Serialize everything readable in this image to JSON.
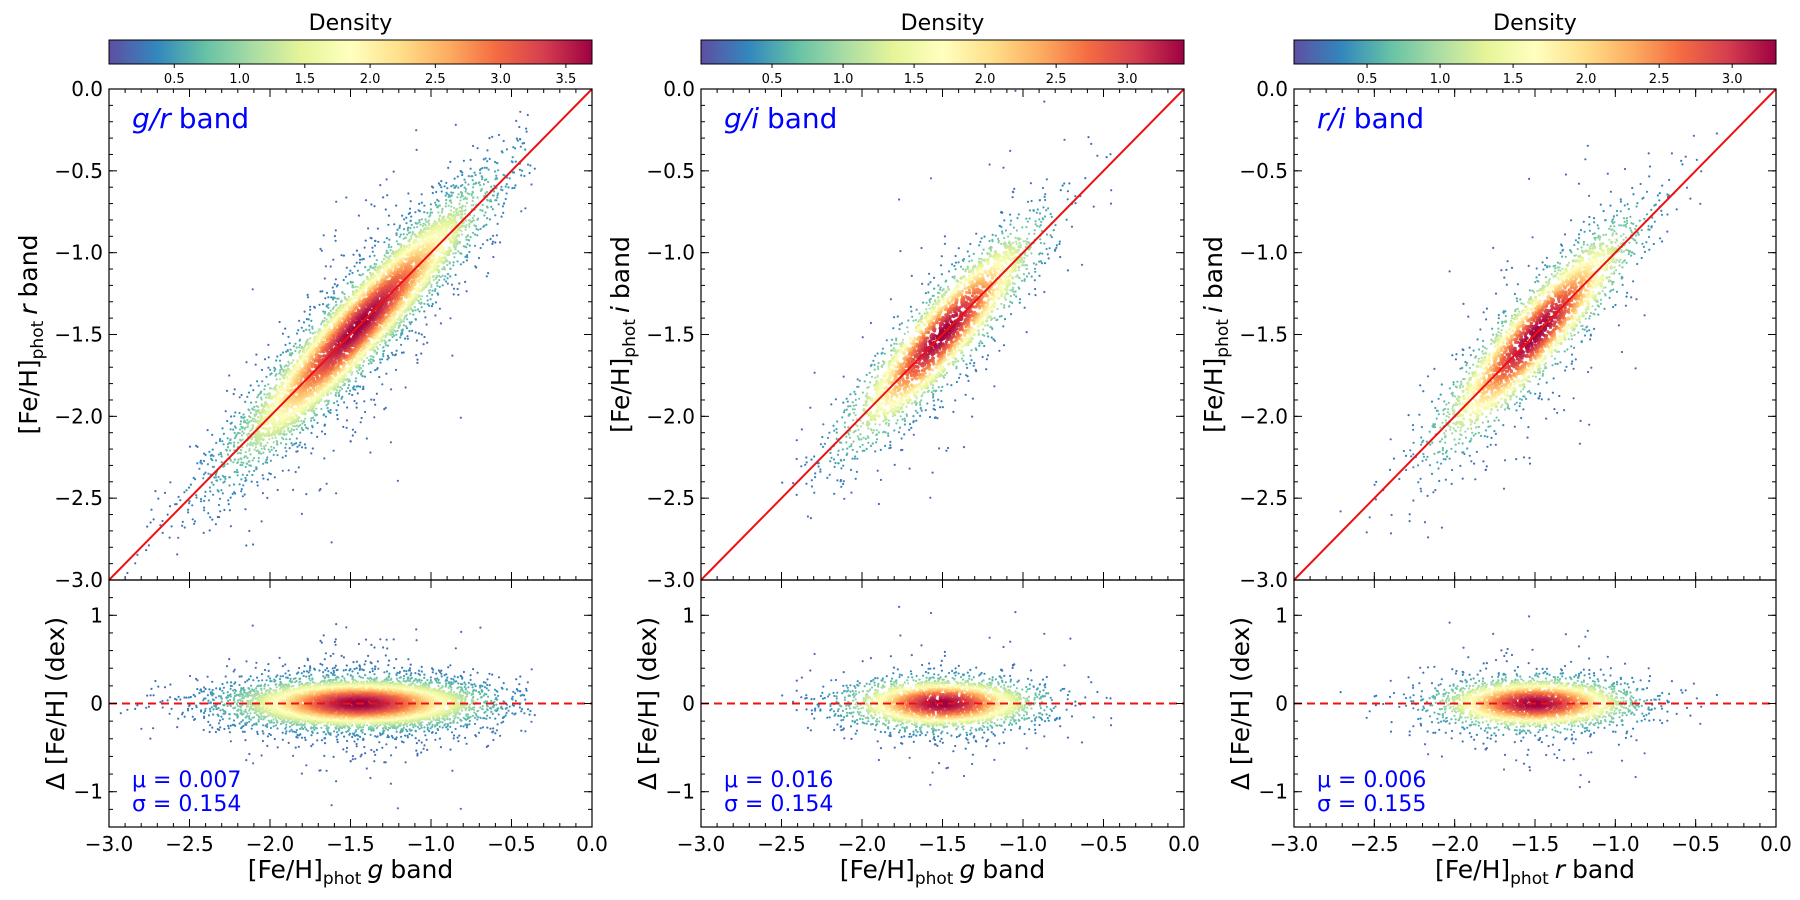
{
  "colors": {
    "diagonal": "#ee1111",
    "zero_line": "#ee1111",
    "annotation": "#0000ff",
    "colormap": [
      "#5e4fa2",
      "#3288bd",
      "#66c2a5",
      "#abdda4",
      "#e6f598",
      "#ffffbf",
      "#fee08b",
      "#fdae61",
      "#f46d43",
      "#d53e4f",
      "#9e0142"
    ]
  },
  "colorbar_title": "Density",
  "chart_data": [
    {
      "type": "scatter",
      "band_label_main": "g/r",
      "band_label_suffix": "band",
      "xlabel": {
        "main": "[Fe/H]",
        "sub": "phot",
        "band": "g",
        "suffix": "band"
      },
      "ylabel_top": {
        "main": "[Fe/H]",
        "sub": "phot",
        "band": "r",
        "suffix": "band"
      },
      "ylabel_bottom": "Δ [Fe/H] (dex)",
      "xlim": [
        -3.0,
        0.0
      ],
      "ylim_top": [
        -3.0,
        0.0
      ],
      "ylim_bottom": [
        -1.4,
        1.4
      ],
      "x_ticks": [
        "−3.0",
        "−2.5",
        "−2.0",
        "−1.5",
        "−1.0",
        "−0.5",
        "0.0"
      ],
      "x_tick_values": [
        -3.0,
        -2.5,
        -2.0,
        -1.5,
        -1.0,
        -0.5,
        0.0
      ],
      "y_ticks_top": [
        "−3.0",
        "−2.5",
        "−2.0",
        "−1.5",
        "−1.0",
        "−0.5",
        "0.0"
      ],
      "y_tick_values_top": [
        -3.0,
        -2.5,
        -2.0,
        -1.5,
        -1.0,
        -0.5,
        0.0
      ],
      "y_ticks_bottom": [
        "−1",
        "0",
        "1"
      ],
      "y_tick_values_bottom": [
        -1,
        0,
        1
      ],
      "colorbar": {
        "ticks": [
          "0.5",
          "1.0",
          "1.5",
          "2.0",
          "2.5",
          "3.0",
          "3.5"
        ],
        "tick_values": [
          0.5,
          1.0,
          1.5,
          2.0,
          2.5,
          3.0,
          3.5
        ],
        "min": 0.0,
        "max": 3.7
      },
      "distribution": {
        "center": -1.45,
        "spread": 0.42,
        "scatter": 0.154,
        "n_points": 5200,
        "x_min": -2.95,
        "x_max": -0.35
      },
      "mu_text": "μ = 0.007",
      "sigma_text": "σ = 0.154"
    },
    {
      "type": "scatter",
      "band_label_main": "g/i",
      "band_label_suffix": "band",
      "xlabel": {
        "main": "[Fe/H]",
        "sub": "phot",
        "band": "g",
        "suffix": "band"
      },
      "ylabel_top": {
        "main": "[Fe/H]",
        "sub": "phot",
        "band": "i",
        "suffix": "band"
      },
      "ylabel_bottom": "Δ [Fe/H] (dex)",
      "xlim": [
        -3.0,
        0.0
      ],
      "ylim_top": [
        -3.0,
        0.0
      ],
      "ylim_bottom": [
        -1.4,
        1.4
      ],
      "x_ticks": [
        "−3.0",
        "−2.5",
        "−2.0",
        "−1.5",
        "−1.0",
        "−0.5",
        "0.0"
      ],
      "x_tick_values": [
        -3.0,
        -2.5,
        -2.0,
        -1.5,
        -1.0,
        -0.5,
        0.0
      ],
      "y_ticks_top": [
        "−3.0",
        "−2.5",
        "−2.0",
        "−1.5",
        "−1.0",
        "−0.5",
        "0.0"
      ],
      "y_tick_values_top": [
        -3.0,
        -2.5,
        -2.0,
        -1.5,
        -1.0,
        -0.5,
        0.0
      ],
      "y_ticks_bottom": [
        "−1",
        "0",
        "1"
      ],
      "y_tick_values_bottom": [
        -1,
        0,
        1
      ],
      "colorbar": {
        "ticks": [
          "0.5",
          "1.0",
          "1.5",
          "2.0",
          "2.5",
          "3.0"
        ],
        "tick_values": [
          0.5,
          1.0,
          1.5,
          2.0,
          2.5,
          3.0
        ],
        "min": 0.0,
        "max": 3.4
      },
      "distribution": {
        "center": -1.5,
        "spread": 0.32,
        "scatter": 0.154,
        "n_points": 2400,
        "x_min": -2.9,
        "x_max": -0.4
      },
      "mu_text": "μ = 0.016",
      "sigma_text": "σ = 0.154"
    },
    {
      "type": "scatter",
      "band_label_main": "r/i",
      "band_label_suffix": "band",
      "xlabel": {
        "main": "[Fe/H]",
        "sub": "phot",
        "band": "r",
        "suffix": "band"
      },
      "ylabel_top": {
        "main": "[Fe/H]",
        "sub": "phot",
        "band": "i",
        "suffix": "band"
      },
      "ylabel_bottom": "Δ [Fe/H] (dex)",
      "xlim": [
        -3.0,
        0.0
      ],
      "ylim_top": [
        -3.0,
        0.0
      ],
      "ylim_bottom": [
        -1.4,
        1.4
      ],
      "x_ticks": [
        "−3.0",
        "−2.5",
        "−2.0",
        "−1.5",
        "−1.0",
        "−0.5",
        "0.0"
      ],
      "x_tick_values": [
        -3.0,
        -2.5,
        -2.0,
        -1.5,
        -1.0,
        -0.5,
        0.0
      ],
      "y_ticks_top": [
        "−3.0",
        "−2.5",
        "−2.0",
        "−1.5",
        "−1.0",
        "−0.5",
        "0.0"
      ],
      "y_tick_values_top": [
        -3.0,
        -2.5,
        -2.0,
        -1.5,
        -1.0,
        -0.5,
        0.0
      ],
      "y_ticks_bottom": [
        "−1",
        "0",
        "1"
      ],
      "y_tick_values_bottom": [
        -1,
        0,
        1
      ],
      "colorbar": {
        "ticks": [
          "0.5",
          "1.0",
          "1.5",
          "2.0",
          "2.5",
          "3.0"
        ],
        "tick_values": [
          0.5,
          1.0,
          1.5,
          2.0,
          2.5,
          3.0
        ],
        "min": 0.0,
        "max": 3.3
      },
      "distribution": {
        "center": -1.5,
        "spread": 0.33,
        "scatter": 0.155,
        "n_points": 2400,
        "x_min": -2.9,
        "x_max": -0.35
      },
      "mu_text": "μ = 0.006",
      "sigma_text": "σ = 0.155"
    }
  ]
}
